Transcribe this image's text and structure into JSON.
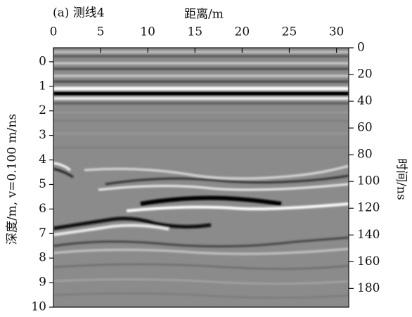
{
  "chart_data": {
    "type": "radargram",
    "title": "(a) 测线4",
    "x_label": "距离/m",
    "y_label": "深度/m, v=0.100 m/ns",
    "y2_label": "时间/ns",
    "xlim": [
      0,
      31.3
    ],
    "xticks": [
      0,
      5,
      10,
      15,
      20,
      25,
      30
    ],
    "ylim": [
      10,
      -0.57
    ],
    "yticks": [
      0,
      1,
      2,
      3,
      4,
      5,
      6,
      7,
      8,
      9,
      10
    ],
    "y2lim": [
      194,
      0
    ],
    "y2ticks": [
      0,
      20,
      40,
      60,
      80,
      100,
      120,
      140,
      160,
      180
    ]
  }
}
